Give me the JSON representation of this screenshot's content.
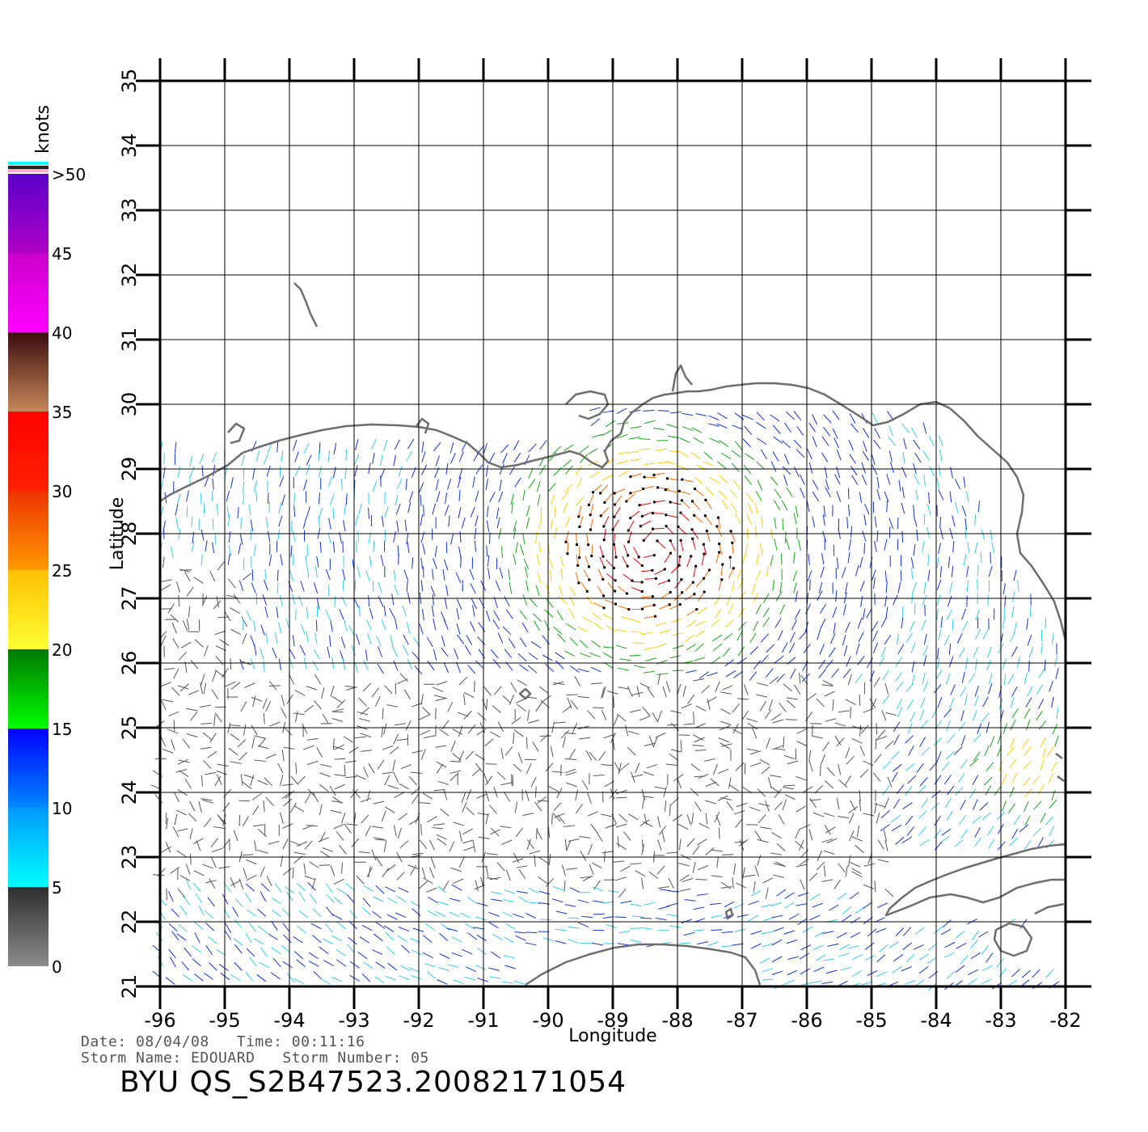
{
  "map": {
    "x_axis_label": "Longitude",
    "y_axis_label": "Latitude",
    "lon_ticks": [
      "-96",
      "-95",
      "-94",
      "-93",
      "-92",
      "-91",
      "-90",
      "-89",
      "-88",
      "-87",
      "-86",
      "-85",
      "-84",
      "-83",
      "-82"
    ],
    "lat_ticks": [
      "21",
      "22",
      "23",
      "24",
      "25",
      "26",
      "27",
      "28",
      "29",
      "30",
      "31",
      "32",
      "33",
      "34",
      "35"
    ],
    "lon_range": [
      -96,
      -82
    ],
    "lat_range": [
      21,
      35
    ],
    "grid": true,
    "coastline_color": "#6e6e6e",
    "gridline_color": "#000000"
  },
  "colorbar": {
    "unit_label": "knots",
    "tick_labels": [
      "0",
      "5",
      "10",
      "15",
      "20",
      "25",
      "30",
      "35",
      "40",
      "45",
      ">50"
    ],
    "segments": [
      {
        "range": [
          0,
          5
        ],
        "colors": [
          "#8c8c8c",
          "#2e2e2e"
        ]
      },
      {
        "range": [
          5,
          10
        ],
        "colors": [
          "#00ffff",
          "#0099ff"
        ]
      },
      {
        "range": [
          10,
          15
        ],
        "colors": [
          "#0088ff",
          "#0000ff"
        ]
      },
      {
        "range": [
          15,
          20
        ],
        "colors": [
          "#00ff00",
          "#007700"
        ]
      },
      {
        "range": [
          20,
          25
        ],
        "colors": [
          "#ffff33",
          "#ffc000"
        ]
      },
      {
        "range": [
          25,
          30
        ],
        "colors": [
          "#ff9900",
          "#ee3300"
        ]
      },
      {
        "range": [
          30,
          35
        ],
        "colors": [
          "#ff2200",
          "#ff0000"
        ]
      },
      {
        "range": [
          35,
          40
        ],
        "colors": [
          "#c8875a",
          "#3a0d0d"
        ]
      },
      {
        "range": [
          40,
          45
        ],
        "colors": [
          "#ff00ff",
          "#cc00cc"
        ]
      },
      {
        "range": [
          45,
          50
        ],
        "colors": [
          "#b000c8",
          "#5a00c8"
        ]
      }
    ]
  },
  "wind_field": {
    "description_colors": {
      "0-5": "#555555",
      "5-10": "#33ccee",
      "10-15": "#1133dd",
      "15-20": "#11aa11",
      "20-25": "#ffcc00",
      "25-30": "#ff6600",
      "30-35": "#ee0000"
    }
  },
  "footer": {
    "date_line": "Date: 08/04/08   Time: 00:11:16",
    "storm_line": "Storm Name: EDOUARD   Storm Number: 05",
    "file_id": "BYU QS_S2B47523.20082171054"
  }
}
